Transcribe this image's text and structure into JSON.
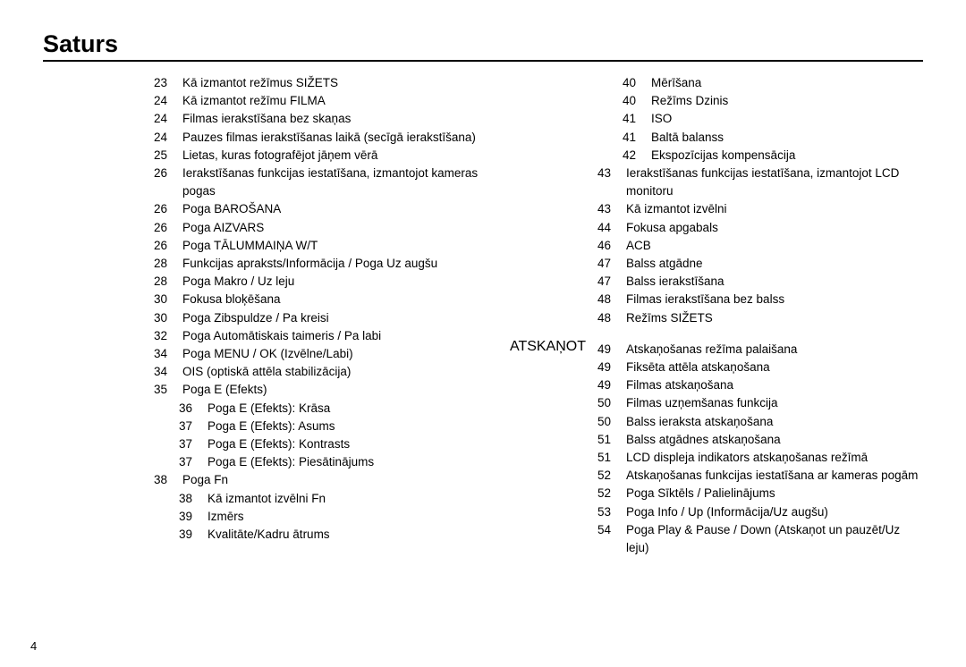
{
  "title": "Saturs",
  "page_number": "4",
  "left_column": [
    {
      "page": "23",
      "text": "Kā izmantot režīmus SIŽETS",
      "indent": 1
    },
    {
      "page": "24",
      "text": "Kā izmantot režīmu FILMA",
      "indent": 1
    },
    {
      "page": "24",
      "text": "Filmas ierakstīšana bez skaņas",
      "indent": 1
    },
    {
      "page": "24",
      "text": "Pauzes filmas ierakstīšanas laikā (secīgā ierakstīšana)",
      "indent": 1
    },
    {
      "page": "25",
      "text": "Lietas, kuras fotografējot jāņem vērā",
      "indent": 0
    },
    {
      "page": "26",
      "text": "Ierakstīšanas funkcijas iestatīšana, izmantojot kameras pogas",
      "indent": 0
    },
    {
      "page": "26",
      "text": "Poga BAROŠANA",
      "indent": 1
    },
    {
      "page": "26",
      "text": "Poga AIZVARS",
      "indent": 1
    },
    {
      "page": "26",
      "text": "Poga TĀLUMMAIŅA W/T",
      "indent": 1
    },
    {
      "page": "28",
      "text": "Funkcijas apraksts/Informācija / Poga Uz augšu",
      "indent": 1
    },
    {
      "page": "28",
      "text": "Poga Makro / Uz leju",
      "indent": 1
    },
    {
      "page": "30",
      "text": "Fokusa bloķēšana",
      "indent": 1
    },
    {
      "page": "30",
      "text": "Poga Zibspuldze / Pa kreisi",
      "indent": 1
    },
    {
      "page": "32",
      "text": "Poga Automātiskais taimeris / Pa labi",
      "indent": 1
    },
    {
      "page": "34",
      "text": "Poga MENU / OK (Izvēlne/Labi)",
      "indent": 1
    },
    {
      "page": "34",
      "text": "OIS (optiskā attēla stabilizācija)",
      "indent": 1
    },
    {
      "page": "35",
      "text": "Poga E (Efekts)",
      "indent": 1
    },
    {
      "page": "36",
      "text": "Poga E (Efekts): Krāsa",
      "indent": 2
    },
    {
      "page": "37",
      "text": "Poga E (Efekts): Asums",
      "indent": 2
    },
    {
      "page": "37",
      "text": "Poga E (Efekts): Kontrasts",
      "indent": 2
    },
    {
      "page": "37",
      "text": "Poga E (Efekts): Piesātinājums",
      "indent": 2
    },
    {
      "page": "38",
      "text": "Poga Fn",
      "indent": 1
    },
    {
      "page": "38",
      "text": "Kā izmantot izvēlni Fn",
      "indent": 2
    },
    {
      "page": "39",
      "text": "Izmērs",
      "indent": 2
    },
    {
      "page": "39",
      "text": "Kvalitāte/Kadru ātrums",
      "indent": 2
    }
  ],
  "right_column_top": [
    {
      "page": "40",
      "text": "Mērīšana",
      "indent": 2
    },
    {
      "page": "40",
      "text": "Režīms Dzinis",
      "indent": 2
    },
    {
      "page": "41",
      "text": "ISO",
      "indent": 2
    },
    {
      "page": "41",
      "text": "Baltā balanss",
      "indent": 2
    },
    {
      "page": "42",
      "text": "Ekspozīcijas kompensācija",
      "indent": 2
    },
    {
      "page": "43",
      "text": "Ierakstīšanas funkcijas iestatīšana, izmantojot LCD monitoru",
      "indent": 0
    },
    {
      "page": "43",
      "text": "Kā izmantot izvēlni",
      "indent": 1
    },
    {
      "page": "44",
      "text": "Fokusa apgabals",
      "indent": 1
    },
    {
      "page": "46",
      "text": "ACB",
      "indent": 1
    },
    {
      "page": "47",
      "text": "Balss atgādne",
      "indent": 1
    },
    {
      "page": "47",
      "text": "Balss ierakstīšana",
      "indent": 1
    },
    {
      "page": "48",
      "text": "Filmas ierakstīšana bez balss",
      "indent": 1
    },
    {
      "page": "48",
      "text": "Režīms SIŽETS",
      "indent": 1
    }
  ],
  "section_label_right": "ATSKAŅOT",
  "right_column_bottom": [
    {
      "page": "49",
      "text": "Atskaņošanas režīma palaišana",
      "indent": 0
    },
    {
      "page": "49",
      "text": "Fiksēta attēla atskaņošana",
      "indent": 1
    },
    {
      "page": "49",
      "text": "Filmas atskaņošana",
      "indent": 1
    },
    {
      "page": "50",
      "text": "Filmas uzņemšanas funkcija",
      "indent": 1
    },
    {
      "page": "50",
      "text": "Balss ieraksta atskaņošana",
      "indent": 1
    },
    {
      "page": "51",
      "text": "Balss atgādnes atskaņošana",
      "indent": 1
    },
    {
      "page": "51",
      "text": "LCD displeja indikators atskaņošanas režīmā",
      "indent": 0
    },
    {
      "page": "52",
      "text": "Atskaņošanas funkcijas iestatīšana ar kameras pogām",
      "indent": 0
    },
    {
      "page": "52",
      "text": "Poga Sīktēls / Palielinājums",
      "indent": 1
    },
    {
      "page": "53",
      "text": "Poga Info / Up (Informācija/Uz augšu)",
      "indent": 1
    },
    {
      "page": "54",
      "text": "Poga Play & Pause / Down (Atskaņot un pauzēt/Uz leju)",
      "indent": 1
    }
  ]
}
